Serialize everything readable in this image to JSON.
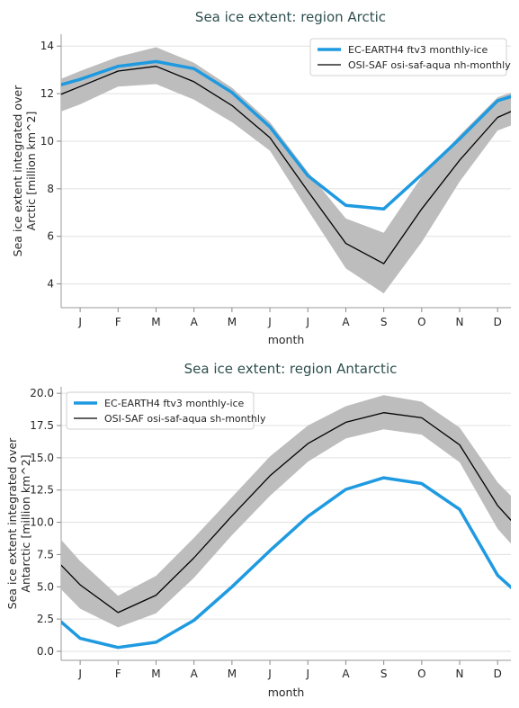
{
  "chart_data": [
    {
      "type": "line",
      "title": "Sea ice extent: region Arctic",
      "xlabel": "month",
      "ylabel": "Sea ice extent integrated over Arctic [million km^2]",
      "ylabel_lines": [
        "Sea ice extent integrated over",
        "Arctic [million km^2]"
      ],
      "categories": [
        "J",
        "F",
        "M",
        "A",
        "M",
        "J",
        "J",
        "A",
        "S",
        "O",
        "N",
        "D"
      ],
      "ylim": [
        3.0,
        14.5
      ],
      "yticks": [
        4,
        6,
        8,
        10,
        12,
        14
      ],
      "ytick_labels": [
        "4",
        "6",
        "8",
        "10",
        "12",
        "14"
      ],
      "grid": true,
      "legend_position": "top-right",
      "series": [
        {
          "name": "EC-EARTH4 ftv3 monthly-ice",
          "color": "#1f9ae0",
          "values": [
            12.6,
            13.15,
            13.35,
            13.05,
            12.05,
            10.6,
            8.55,
            7.3,
            7.15,
            8.6,
            10.1,
            11.7
          ],
          "wrap_start": 12.15,
          "wrap_end": 12.2
        },
        {
          "name": "OSI-SAF osi-saf-aqua nh-monthly",
          "color": "#000000",
          "values": [
            12.3,
            12.95,
            13.15,
            12.5,
            11.5,
            10.15,
            7.9,
            5.7,
            4.85,
            7.15,
            9.2,
            11.0
          ],
          "wrap_start": 11.65,
          "wrap_end": 11.7,
          "band_upper": [
            12.95,
            13.55,
            13.95,
            13.3,
            12.25,
            10.8,
            8.7,
            6.75,
            6.15,
            8.5,
            10.25,
            11.85
          ],
          "band_lower": [
            11.55,
            12.3,
            12.4,
            11.75,
            10.8,
            9.6,
            7.1,
            4.65,
            3.6,
            5.75,
            8.3,
            10.45
          ],
          "band_wrap_start": [
            12.3,
            10.95
          ],
          "band_wrap_end": [
            12.4,
            11.05
          ],
          "band_color": "#bdbdbd"
        }
      ]
    },
    {
      "type": "line",
      "title": "Sea ice extent: region Antarctic",
      "xlabel": "month",
      "ylabel": "Sea ice extent integrated over Antarctic [million km^2]",
      "ylabel_lines": [
        "Sea ice extent integrated over",
        "Antarctic [million km^2]"
      ],
      "categories": [
        "J",
        "F",
        "M",
        "A",
        "M",
        "J",
        "J",
        "A",
        "S",
        "O",
        "N",
        "D"
      ],
      "ylim": [
        -0.7,
        20.5
      ],
      "yticks": [
        0,
        2.5,
        5,
        7.5,
        10,
        12.5,
        15,
        17.5,
        20
      ],
      "ytick_labels": [
        "0.0",
        "2.5",
        "5.0",
        "7.5",
        "10.0",
        "12.5",
        "15.0",
        "17.5",
        "20.0"
      ],
      "grid": true,
      "legend_position": "top-left",
      "series": [
        {
          "name": "EC-EARTH4 ftv3 monthly-ice",
          "color": "#1f9ae0",
          "values": [
            1.0,
            0.3,
            0.7,
            2.4,
            5.0,
            7.8,
            10.45,
            12.55,
            13.45,
            13.0,
            11.0,
            5.9
          ],
          "wrap_start": 3.55,
          "wrap_end": 3.25
        },
        {
          "name": "OSI-SAF osi-saf-aqua sh-monthly",
          "color": "#000000",
          "values": [
            5.15,
            3.0,
            4.35,
            7.25,
            10.5,
            13.6,
            16.1,
            17.75,
            18.5,
            18.1,
            16.0,
            11.3
          ],
          "wrap_start": 8.2,
          "wrap_end": 8.05,
          "band_upper": [
            7.0,
            4.3,
            5.85,
            8.8,
            11.95,
            15.1,
            17.5,
            19.0,
            19.85,
            19.35,
            17.35,
            13.1
          ],
          "band_lower": [
            3.3,
            1.85,
            2.95,
            5.7,
            9.0,
            12.05,
            14.7,
            16.5,
            17.2,
            16.8,
            14.65,
            9.5
          ],
          "band_wrap_start": [
            10.3,
            6.3
          ],
          "band_wrap_end": [
            10.1,
            6.2
          ],
          "band_color": "#bdbdbd"
        }
      ]
    }
  ]
}
